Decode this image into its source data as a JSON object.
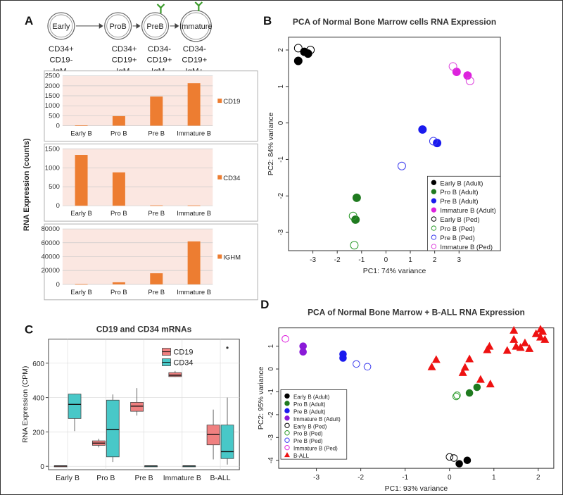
{
  "panels": {
    "A": {
      "letter": "A",
      "stages": [
        {
          "label": "Early",
          "marker": [
            "CD34+",
            "CD19-",
            "IgM-"
          ],
          "antenna": false
        },
        {
          "label": "ProB",
          "marker": [
            "CD34+",
            "CD19+",
            "IgM-"
          ],
          "antenna": false
        },
        {
          "label": "PreB",
          "marker": [
            "CD34-",
            "CD19+",
            "IgM-"
          ],
          "antenna": true
        },
        {
          "label": "Immature",
          "marker": [
            "CD34-",
            "CD19+",
            "IgM+"
          ],
          "antenna": true
        }
      ],
      "ylabel": "RNA Expression (counts)"
    },
    "B": {
      "letter": "B"
    },
    "C": {
      "letter": "C"
    },
    "D": {
      "letter": "D"
    }
  },
  "chart_data": [
    {
      "type": "bar",
      "panel": "A",
      "id": "cd19",
      "categories": [
        "Early B",
        "Pro B",
        "Pre B",
        "Immature B"
      ],
      "values": [
        15,
        480,
        1460,
        2130
      ],
      "legend": "CD19",
      "ylim": [
        0,
        2500
      ],
      "yticks": [
        "0",
        "500",
        "1000",
        "1500",
        "2000",
        "2500"
      ],
      "color": "#ed7d31"
    },
    {
      "type": "bar",
      "panel": "A",
      "id": "cd34",
      "categories": [
        "Early B",
        "Pro B",
        "Pre B",
        "Immature B"
      ],
      "values": [
        1340,
        880,
        10,
        8
      ],
      "legend": "CD34",
      "ylim": [
        0,
        1500
      ],
      "yticks": [
        "0",
        "500",
        "1000",
        "1500"
      ],
      "color": "#ed7d31"
    },
    {
      "type": "bar",
      "panel": "A",
      "id": "ighm",
      "categories": [
        "Early B",
        "Pro B",
        "Pre B",
        "Immature B"
      ],
      "values": [
        500,
        3000,
        16000,
        62000
      ],
      "legend": "IGHM",
      "ylim": [
        0,
        80000
      ],
      "yticks": [
        "0",
        "20000",
        "40000",
        "60000",
        "80000"
      ],
      "color": "#ed7d31"
    },
    {
      "type": "scatter",
      "panel": "B",
      "title": "PCA of Normal Bone Marrow cells RNA Expression",
      "xlabel": "PC1: 74% variance",
      "ylabel": "PC2: 84% variance",
      "xlim": [
        -4,
        4.7
      ],
      "ylim": [
        -3.5,
        2.35
      ],
      "xticks": [
        -3,
        -2,
        -1,
        0,
        1,
        2,
        3
      ],
      "yticks": [
        -3,
        -2,
        -1,
        0,
        1,
        2
      ],
      "series": [
        {
          "name": "Early B (Adult)",
          "color": "#000000",
          "filled": true,
          "shape": "circle",
          "points": [
            [
              -3.6,
              1.7
            ],
            [
              -3.2,
              1.9
            ],
            [
              -3.35,
              1.95
            ]
          ]
        },
        {
          "name": "Pro B (Adult)",
          "color": "#1f7a1f",
          "filled": true,
          "shape": "circle",
          "points": [
            [
              -1.2,
              -2.05
            ],
            [
              -1.25,
              -2.65
            ]
          ]
        },
        {
          "name": "Pre B (Adult)",
          "color": "#1a1aee",
          "filled": true,
          "shape": "circle",
          "points": [
            [
              1.5,
              -0.18
            ],
            [
              2.1,
              -0.55
            ]
          ]
        },
        {
          "name": "Immature B (Adult)",
          "color": "#dd22dd",
          "filled": true,
          "shape": "circle",
          "points": [
            [
              2.9,
              1.4
            ],
            [
              3.35,
              1.3
            ]
          ]
        },
        {
          "name": "Early B (Ped)",
          "color": "#000000",
          "filled": false,
          "shape": "circle",
          "points": [
            [
              -3.6,
              2.05
            ],
            [
              -3.1,
              2.0
            ]
          ]
        },
        {
          "name": "Pro B (Ped)",
          "color": "#2a9a2a",
          "filled": false,
          "shape": "circle",
          "points": [
            [
              -1.35,
              -2.55
            ],
            [
              -1.3,
              -3.35
            ]
          ]
        },
        {
          "name": "Pre B (Ped)",
          "color": "#3a3aee",
          "filled": false,
          "shape": "circle",
          "points": [
            [
              0.65,
              -1.18
            ],
            [
              1.95,
              -0.5
            ]
          ]
        },
        {
          "name": "Immature B (Ped)",
          "color": "#dd44dd",
          "filled": false,
          "shape": "circle",
          "points": [
            [
              2.75,
              1.55
            ],
            [
              3.45,
              1.15
            ]
          ]
        }
      ]
    },
    {
      "type": "box",
      "panel": "C",
      "title": "CD19 and CD34 mRNAs",
      "ylabel": "RNA Expression (CPM)",
      "categories": [
        "Early B",
        "Pro B",
        "Pre B",
        "Immature B",
        "B-ALL"
      ],
      "ylim": [
        -20,
        740
      ],
      "yticks": [
        0,
        200,
        400,
        600
      ],
      "series": [
        {
          "name": "CD19",
          "color": "#f08080",
          "boxes": [
            {
              "min": 0,
              "q1": 1,
              "median": 2,
              "q3": 3,
              "max": 4,
              "outliers": []
            },
            {
              "min": 110,
              "q1": 122,
              "median": 135,
              "q3": 148,
              "max": 160,
              "outliers": []
            },
            {
              "min": 295,
              "q1": 320,
              "median": 350,
              "q3": 372,
              "max": 455,
              "outliers": []
            },
            {
              "min": 520,
              "q1": 522,
              "median": 530,
              "q3": 545,
              "max": 555,
              "outliers": []
            },
            {
              "min": 40,
              "q1": 125,
              "median": 185,
              "q3": 240,
              "max": 330,
              "outliers": []
            }
          ]
        },
        {
          "name": "CD34",
          "color": "#48c8c8",
          "boxes": [
            {
              "min": 205,
              "q1": 278,
              "median": 360,
              "q3": 420,
              "max": 422,
              "outliers": []
            },
            {
              "min": 25,
              "q1": 55,
              "median": 215,
              "q3": 385,
              "max": 418,
              "outliers": []
            },
            {
              "min": 0,
              "q1": 1,
              "median": 2,
              "q3": 3,
              "max": 4,
              "outliers": []
            },
            {
              "min": 0,
              "q1": 1,
              "median": 2,
              "q3": 3,
              "max": 4,
              "outliers": []
            },
            {
              "min": 10,
              "q1": 45,
              "median": 85,
              "q3": 240,
              "max": 400,
              "outliers": [
                690
              ]
            }
          ]
        }
      ]
    },
    {
      "type": "scatter",
      "panel": "D",
      "title": "PCA of Normal Bone Marrow + B-ALL RNA Expression",
      "xlabel": "PC1: 93% variance",
      "ylabel": "PC2: 95% variance",
      "xlim": [
        -3.85,
        2.35
      ],
      "ylim": [
        -4.35,
        1.8
      ],
      "xticks": [
        -3,
        -2,
        -1,
        0,
        1,
        2
      ],
      "yticks": [
        -4,
        -3,
        -2,
        -1,
        0,
        1
      ],
      "series": [
        {
          "name": "Early B (Adult)",
          "color": "#000000",
          "filled": true,
          "shape": "circle",
          "points": [
            [
              0.22,
              -4.15
            ],
            [
              0.4,
              -4.0
            ]
          ]
        },
        {
          "name": "Pro B (Adult)",
          "color": "#1f7a1f",
          "filled": true,
          "shape": "circle",
          "points": [
            [
              0.45,
              -1.05
            ],
            [
              0.62,
              -0.8
            ]
          ]
        },
        {
          "name": "Pre B (Adult)",
          "color": "#1a1aee",
          "filled": true,
          "shape": "circle",
          "points": [
            [
              -2.4,
              0.65
            ],
            [
              -2.4,
              0.48
            ]
          ]
        },
        {
          "name": "Immature B (Adult)",
          "color": "#8a1ad8",
          "filled": true,
          "shape": "circle",
          "points": [
            [
              -3.3,
              1.0
            ],
            [
              -3.3,
              0.75
            ]
          ]
        },
        {
          "name": "Early B (Ped)",
          "color": "#000000",
          "filled": false,
          "shape": "circle",
          "points": [
            [
              0.0,
              -3.85
            ],
            [
              0.1,
              -3.9
            ]
          ]
        },
        {
          "name": "Pro B (Ped)",
          "color": "#2a9a2a",
          "filled": false,
          "shape": "circle",
          "points": [
            [
              0.17,
              -1.15
            ],
            [
              0.15,
              -1.2
            ]
          ]
        },
        {
          "name": "Pre B (Ped)",
          "color": "#3a3aee",
          "filled": false,
          "shape": "circle",
          "points": [
            [
              -2.1,
              0.22
            ],
            [
              -1.85,
              0.1
            ]
          ]
        },
        {
          "name": "Immature B (Ped)",
          "color": "#dd22dd",
          "filled": false,
          "shape": "circle",
          "points": [
            [
              -3.7,
              1.32
            ]
          ]
        },
        {
          "name": "B-ALL",
          "color": "#ee1111",
          "filled": true,
          "shape": "triangle",
          "points": [
            [
              -0.4,
              0.1
            ],
            [
              -0.3,
              0.42
            ],
            [
              0.3,
              -0.15
            ],
            [
              0.35,
              0.08
            ],
            [
              0.45,
              0.45
            ],
            [
              0.9,
              1.0
            ],
            [
              0.85,
              0.85
            ],
            [
              0.7,
              -0.45
            ],
            [
              0.92,
              -0.65
            ],
            [
              1.3,
              0.82
            ],
            [
              1.45,
              1.7
            ],
            [
              1.45,
              1.3
            ],
            [
              1.5,
              1.0
            ],
            [
              1.6,
              0.95
            ],
            [
              1.7,
              1.15
            ],
            [
              1.8,
              0.9
            ],
            [
              1.95,
              1.55
            ],
            [
              2.05,
              1.75
            ],
            [
              2.05,
              1.4
            ],
            [
              2.1,
              1.65
            ],
            [
              2.15,
              1.3
            ]
          ]
        }
      ]
    }
  ]
}
